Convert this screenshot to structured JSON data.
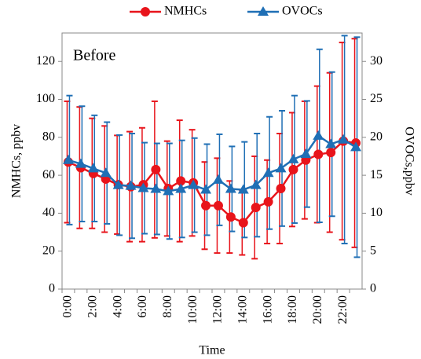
{
  "chart_data": {
    "type": "line",
    "annotation": "Before",
    "xlabel": "Time",
    "ylabel": "NMHCs, ppbv",
    "y2label": "OVOCs,ppbv",
    "categories": [
      "0:00",
      null,
      "2:00",
      null,
      "4:00",
      null,
      "6:00",
      null,
      "8:00",
      null,
      "10:00",
      null,
      "12:00",
      null,
      "14:00",
      null,
      "16:00",
      null,
      "18:00",
      null,
      "20:00",
      null,
      "22:00",
      null
    ],
    "ylim": [
      0,
      135
    ],
    "yticks": [
      0,
      20,
      40,
      60,
      80,
      100,
      120
    ],
    "y2lim": [
      0,
      33.75
    ],
    "y2ticks": [
      0,
      5,
      10,
      15,
      20,
      25,
      30
    ],
    "legend": "top",
    "series": [
      {
        "name": "NMHCs",
        "color": "#e8141b",
        "marker": "circle",
        "values": [
          67,
          64,
          61,
          58,
          55,
          54,
          55,
          63,
          53,
          57,
          56,
          44,
          44,
          38,
          35,
          43,
          46,
          53,
          63,
          68,
          71,
          72,
          78,
          77
        ],
        "errors": [
          32,
          32,
          29,
          28,
          26,
          29,
          30,
          36,
          25,
          32,
          28,
          23,
          25,
          19,
          17,
          27,
          22,
          29,
          30,
          31,
          36,
          42,
          52,
          55
        ]
      },
      {
        "name": "OVOCs",
        "color": "#1f6fb5",
        "marker": "triangle",
        "axis": "y2",
        "values": [
          17,
          16.5,
          15.9,
          15.3,
          13.7,
          13.6,
          13.3,
          13.2,
          12.9,
          13.2,
          13.7,
          13.1,
          14.4,
          13.2,
          13.1,
          13.7,
          15.3,
          15.9,
          17.1,
          17.8,
          20.2,
          19.1,
          19.7,
          18.7
        ],
        "errors": [
          8.5,
          7.6,
          7,
          6.7,
          6.6,
          6.9,
          6,
          6,
          6.3,
          6.4,
          6.2,
          6,
          6,
          5.6,
          6.3,
          6.8,
          7.4,
          7.6,
          8.4,
          7,
          11.4,
          9.5,
          13.7,
          14.5
        ]
      }
    ]
  }
}
